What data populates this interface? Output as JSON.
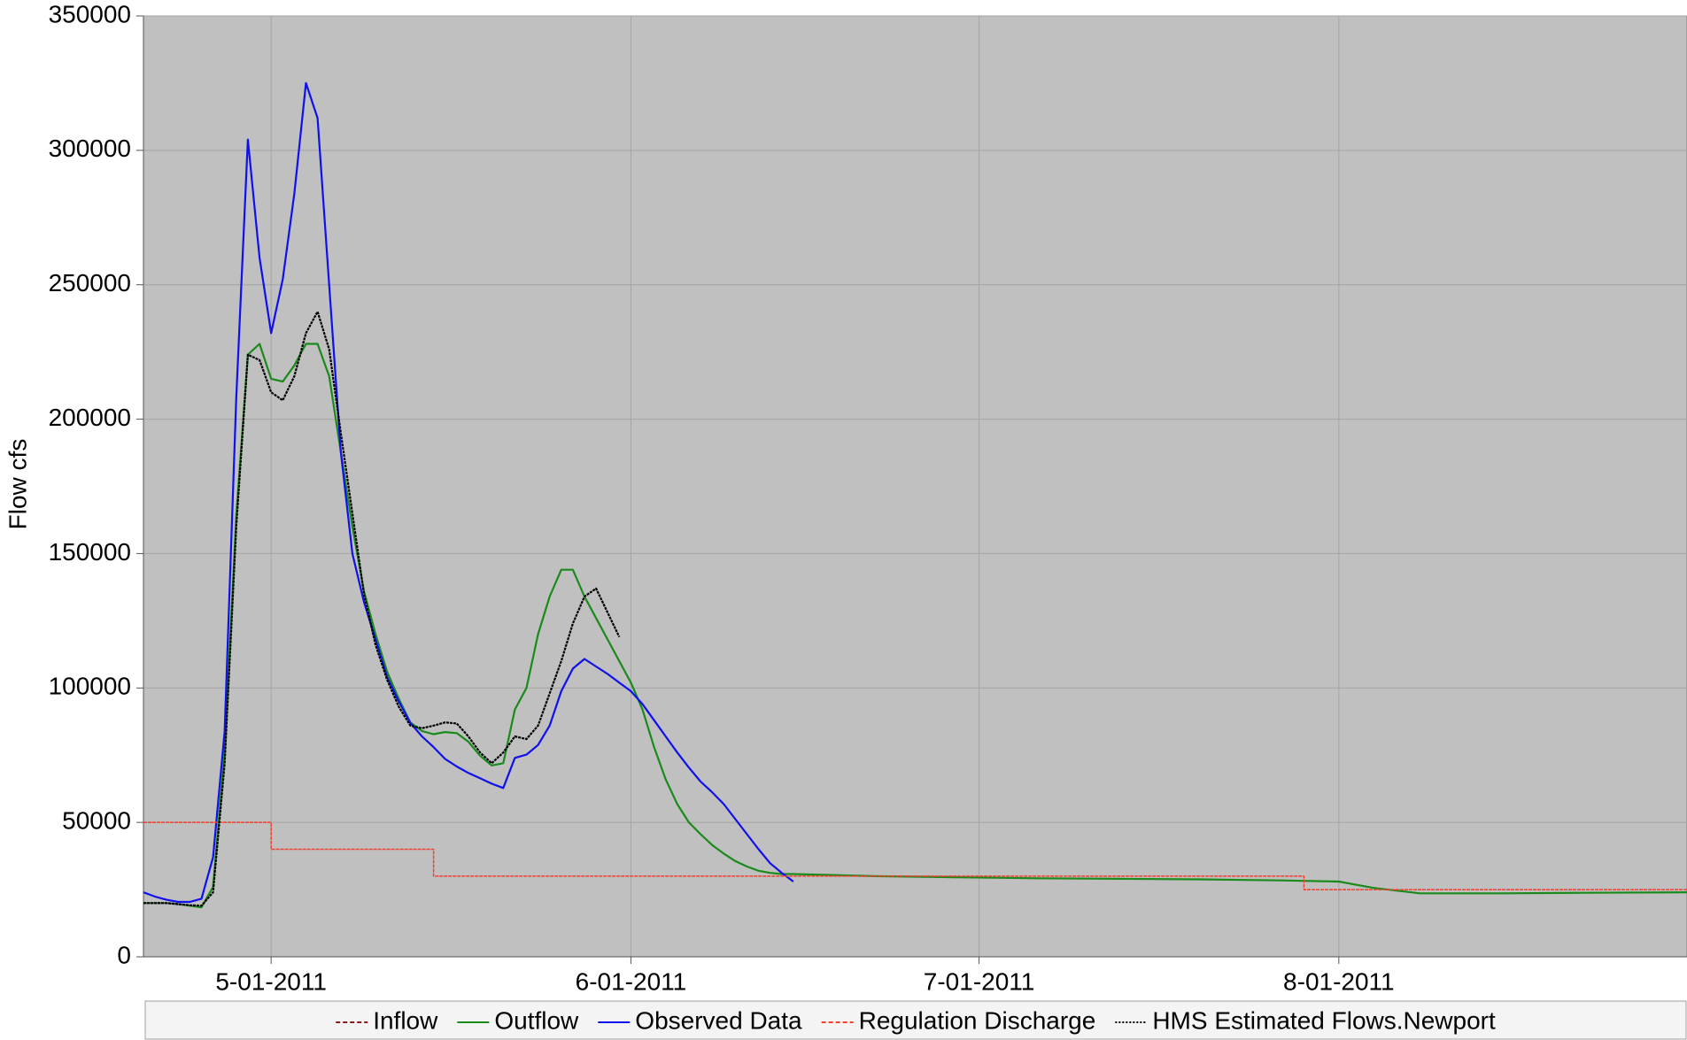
{
  "chart_data": {
    "type": "line",
    "ylabel": "Flow cfs",
    "ylim": [
      0,
      350000
    ],
    "yticks": [
      0,
      50000,
      100000,
      150000,
      200000,
      250000,
      300000,
      350000
    ],
    "xlim": [
      "2011-04-20",
      "2011-08-31"
    ],
    "xticks": [
      {
        "value": "2011-05-01",
        "label": "5-01-2011"
      },
      {
        "value": "2011-06-01",
        "label": "6-01-2011"
      },
      {
        "value": "2011-07-01",
        "label": "7-01-2011"
      },
      {
        "value": "2011-08-01",
        "label": "8-01-2011"
      }
    ],
    "grid": true,
    "legend": "bottom",
    "series": [
      {
        "name": "Inflow",
        "color": "#8b1a1a",
        "dash": "dashed"
      },
      {
        "name": "Outflow",
        "color": "#1a8a1a",
        "dash": "solid",
        "x": [
          "2011-04-20",
          "2011-04-21",
          "2011-04-22",
          "2011-04-23",
          "2011-04-24",
          "2011-04-25",
          "2011-04-26",
          "2011-04-27",
          "2011-04-28",
          "2011-04-29",
          "2011-04-30",
          "2011-05-01",
          "2011-05-02",
          "2011-05-03",
          "2011-05-04",
          "2011-05-05",
          "2011-05-06",
          "2011-05-07",
          "2011-05-08",
          "2011-05-09",
          "2011-05-10",
          "2011-05-11",
          "2011-05-12",
          "2011-05-13",
          "2011-05-14",
          "2011-05-15",
          "2011-05-16",
          "2011-05-17",
          "2011-05-18",
          "2011-05-19",
          "2011-05-20",
          "2011-05-21",
          "2011-05-22",
          "2011-05-23",
          "2011-05-24",
          "2011-05-25",
          "2011-05-26",
          "2011-05-27",
          "2011-05-28",
          "2011-05-29",
          "2011-05-30",
          "2011-05-31",
          "2011-06-01",
          "2011-06-02",
          "2011-06-03",
          "2011-06-04",
          "2011-06-05",
          "2011-06-06",
          "2011-06-07",
          "2011-06-08",
          "2011-06-09",
          "2011-06-10",
          "2011-06-11",
          "2011-06-12",
          "2011-06-13",
          "2011-06-14",
          "2011-06-15",
          "2011-06-22",
          "2011-06-29",
          "2011-07-06",
          "2011-07-13",
          "2011-07-20",
          "2011-07-27",
          "2011-08-01",
          "2011-08-04",
          "2011-08-08",
          "2011-08-15",
          "2011-08-22",
          "2011-08-31"
        ],
        "values": [
          20000,
          20000,
          20000,
          19600,
          19000,
          18400,
          26000,
          76000,
          164000,
          224000,
          228000,
          215000,
          214000,
          220000,
          228000,
          228000,
          216000,
          188000,
          160000,
          136000,
          120000,
          106000,
          96000,
          87200,
          84000,
          82800,
          83600,
          83200,
          80000,
          74800,
          71200,
          72000,
          92000,
          100000,
          120000,
          134000,
          144000,
          144000,
          134000,
          126000,
          118000,
          110000,
          102000,
          92000,
          78000,
          66000,
          56800,
          50000,
          45600,
          41600,
          38400,
          35600,
          33600,
          32000,
          31200,
          30800,
          30800,
          30000,
          29600,
          29200,
          29000,
          28800,
          28400,
          28000,
          25600,
          23600,
          23600,
          23800,
          24000
        ]
      },
      {
        "name": "Observed Data",
        "color": "#1010ee",
        "dash": "solid",
        "x": [
          "2011-04-20",
          "2011-04-21",
          "2011-04-22",
          "2011-04-23",
          "2011-04-24",
          "2011-04-25",
          "2011-04-26",
          "2011-04-27",
          "2011-04-28",
          "2011-04-29",
          "2011-04-30",
          "2011-05-01",
          "2011-05-02",
          "2011-05-03",
          "2011-05-04",
          "2011-05-05",
          "2011-05-06",
          "2011-05-07",
          "2011-05-08",
          "2011-05-09",
          "2011-05-10",
          "2011-05-11",
          "2011-05-12",
          "2011-05-13",
          "2011-05-14",
          "2011-05-15",
          "2011-05-16",
          "2011-05-17",
          "2011-05-18",
          "2011-05-19",
          "2011-05-20",
          "2011-05-21",
          "2011-05-22",
          "2011-05-23",
          "2011-05-24",
          "2011-05-25",
          "2011-05-26",
          "2011-05-27",
          "2011-05-28",
          "2011-05-29",
          "2011-05-30",
          "2011-05-31",
          "2011-06-01",
          "2011-06-02",
          "2011-06-03",
          "2011-06-04",
          "2011-06-05",
          "2011-06-06",
          "2011-06-07",
          "2011-06-08",
          "2011-06-09",
          "2011-06-10",
          "2011-06-11",
          "2011-06-12",
          "2011-06-13",
          "2011-06-14",
          "2011-06-15"
        ],
        "values": [
          24000,
          22400,
          21200,
          20400,
          20400,
          21600,
          37000,
          84000,
          208000,
          304000,
          260000,
          232000,
          252000,
          284000,
          325000,
          312000,
          250000,
          188000,
          150000,
          132000,
          118000,
          104000,
          95000,
          87000,
          82000,
          78000,
          73600,
          70800,
          68400,
          66400,
          64400,
          62800,
          74000,
          75200,
          78800,
          86000,
          98800,
          107200,
          110800,
          108000,
          105200,
          102000,
          98800,
          94000,
          88000,
          82000,
          76000,
          70400,
          65200,
          61200,
          56800,
          51200,
          45600,
          40000,
          34800,
          31200,
          28000
        ]
      },
      {
        "name": "Regulation Discharge",
        "color": "#f04030",
        "dash": "dashed",
        "step": true,
        "x": [
          "2011-04-20",
          "2011-05-01",
          "2011-05-15",
          "2011-07-29"
        ],
        "values": [
          50000,
          40000,
          30000,
          25000
        ]
      },
      {
        "name": "HMS Estimated Flows.Newport",
        "color": "#000000",
        "dash": "dotted",
        "x": [
          "2011-04-20",
          "2011-04-21",
          "2011-04-22",
          "2011-04-23",
          "2011-04-24",
          "2011-04-25",
          "2011-04-26",
          "2011-04-27",
          "2011-04-28",
          "2011-04-29",
          "2011-04-30",
          "2011-05-01",
          "2011-05-02",
          "2011-05-03",
          "2011-05-04",
          "2011-05-05",
          "2011-05-06",
          "2011-05-07",
          "2011-05-08",
          "2011-05-09",
          "2011-05-10",
          "2011-05-11",
          "2011-05-12",
          "2011-05-13",
          "2011-05-14",
          "2011-05-15",
          "2011-05-16",
          "2011-05-17",
          "2011-05-18",
          "2011-05-19",
          "2011-05-20",
          "2011-05-21",
          "2011-05-22",
          "2011-05-23",
          "2011-05-24",
          "2011-05-25",
          "2011-05-26",
          "2011-05-27",
          "2011-05-28",
          "2011-05-29",
          "2011-05-30",
          "2011-05-31"
        ],
        "values": [
          20000,
          20000,
          20000,
          19600,
          19200,
          19000,
          24000,
          72000,
          160000,
          224000,
          222000,
          210000,
          207000,
          216000,
          232000,
          240000,
          226000,
          195000,
          165000,
          135000,
          116000,
          103000,
          93000,
          86000,
          85000,
          86000,
          87200,
          86800,
          82000,
          76000,
          72000,
          76000,
          82000,
          81000,
          86000,
          98000,
          110000,
          124000,
          134000,
          137000,
          128000,
          119000
        ]
      }
    ]
  }
}
